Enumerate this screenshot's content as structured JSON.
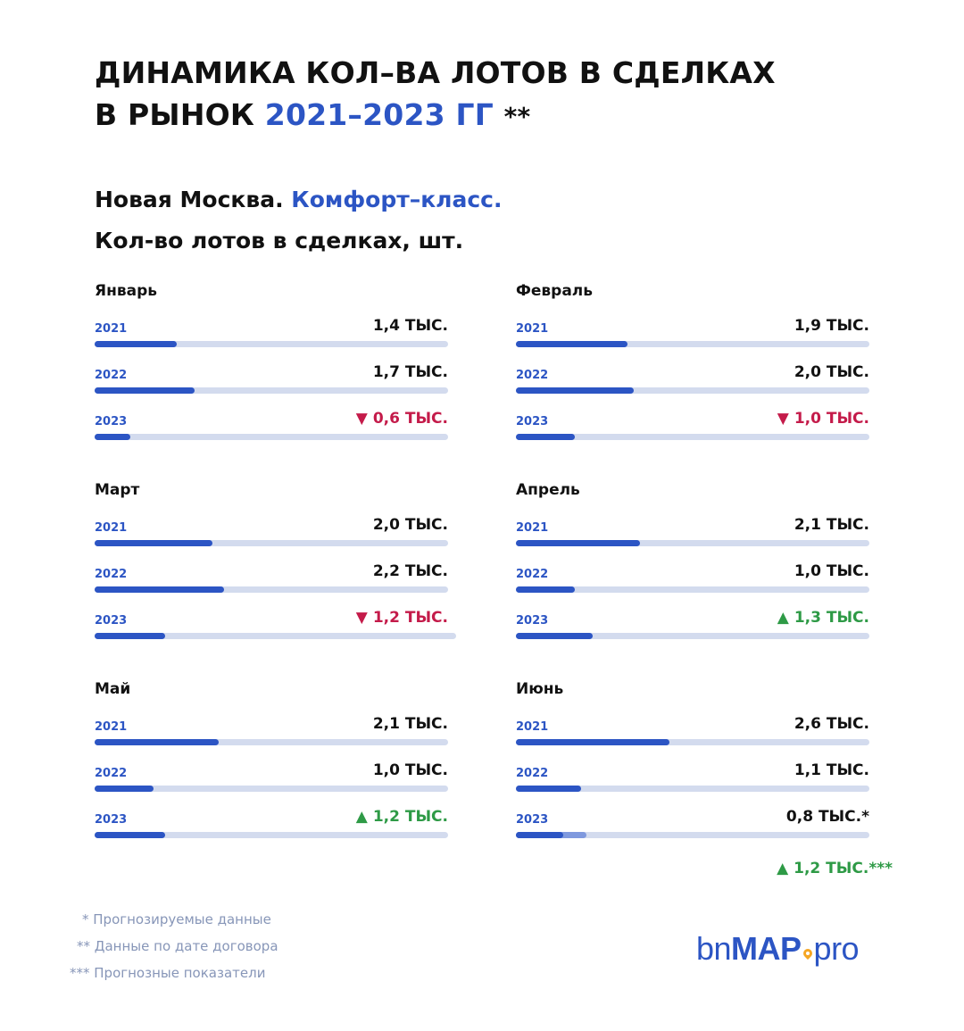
{
  "header": {
    "title_line1": "ДИНАМИКА КОЛ–ВА ЛОТОВ В СДЕЛКАХ",
    "title_line2_prefix": "В РЫНОК",
    "title_line2_accent": "2021–2023 ГГ",
    "title_line2_suffix": "**",
    "subtitle_prefix": "Новая Москва.",
    "subtitle_accent": "Комфорт–класс.",
    "units": "Кол-во лотов в сделках, шт."
  },
  "colors": {
    "accent": "#2c55c4",
    "track": "#d3dbee",
    "forecast": "#7f99de",
    "decrease": "#c41b4a",
    "increase": "#2e9a46"
  },
  "chart_data": {
    "type": "bar",
    "orientation": "horizontal",
    "unit": "тыс.",
    "max_value": 6.0,
    "months": [
      {
        "name": "Январь",
        "rows": [
          {
            "year": "2021",
            "label": "1,4 ТЫС.",
            "value": 1.4,
            "trend": null,
            "trend_symbol": ""
          },
          {
            "year": "2022",
            "label": "1,7 ТЫС.",
            "value": 1.7,
            "trend": null,
            "trend_symbol": ""
          },
          {
            "year": "2023",
            "label": "0,6 ТЫС.",
            "value": 0.6,
            "trend": "down",
            "trend_symbol": "▼"
          }
        ]
      },
      {
        "name": "Февраль",
        "rows": [
          {
            "year": "2021",
            "label": "1,9 ТЫС.",
            "value": 1.9,
            "trend": null,
            "trend_symbol": ""
          },
          {
            "year": "2022",
            "label": "2,0 ТЫС.",
            "value": 2.0,
            "trend": null,
            "trend_symbol": ""
          },
          {
            "year": "2023",
            "label": "1,0 ТЫС.",
            "value": 1.0,
            "trend": "down",
            "trend_symbol": "▼"
          }
        ]
      },
      {
        "name": "Март",
        "rows": [
          {
            "year": "2021",
            "label": "2,0 ТЫС.",
            "value": 2.0,
            "trend": null,
            "trend_symbol": ""
          },
          {
            "year": "2022",
            "label": "2,2 ТЫС.",
            "value": 2.2,
            "trend": null,
            "trend_symbol": ""
          },
          {
            "year": "2023",
            "label": "1,2 ТЫС.",
            "value": 1.2,
            "trend": "down",
            "trend_symbol": "▼"
          }
        ]
      },
      {
        "name": "Апрель",
        "rows": [
          {
            "year": "2021",
            "label": "2,1 ТЫС.",
            "value": 2.1,
            "trend": null,
            "trend_symbol": ""
          },
          {
            "year": "2022",
            "label": "1,0 ТЫС.",
            "value": 1.0,
            "trend": null,
            "trend_symbol": ""
          },
          {
            "year": "2023",
            "label": "1,3 ТЫС.",
            "value": 1.3,
            "trend": "up",
            "trend_symbol": "▲"
          }
        ]
      },
      {
        "name": "Май",
        "rows": [
          {
            "year": "2021",
            "label": "2,1 ТЫС.",
            "value": 2.1,
            "trend": null,
            "trend_symbol": ""
          },
          {
            "year": "2022",
            "label": "1,0 ТЫС.",
            "value": 1.0,
            "trend": null,
            "trend_symbol": ""
          },
          {
            "year": "2023",
            "label": "1,2 ТЫС.",
            "value": 1.2,
            "trend": "up",
            "trend_symbol": "▲"
          }
        ]
      },
      {
        "name": "Июнь",
        "rows": [
          {
            "year": "2021",
            "label": "2,6 ТЫС.",
            "value": 2.6,
            "trend": null,
            "trend_symbol": ""
          },
          {
            "year": "2022",
            "label": "1,1 ТЫС.",
            "value": 1.1,
            "trend": null,
            "trend_symbol": ""
          },
          {
            "year": "2023",
            "label": "0,8 ТЫС.*",
            "value": 0.8,
            "forecast_value": 1.2,
            "trend": null,
            "trend_symbol": ""
          }
        ],
        "forecast_label": "1,2 ТЫС.***",
        "forecast_trend_symbol": "▲"
      }
    ]
  },
  "footnotes": [
    "* Прогнозируемые данные",
    "** Данные по дате договора",
    "*** Прогнозные показатели"
  ],
  "logo": {
    "part1": "bn",
    "part2": "MAP",
    "part3": "pro"
  }
}
